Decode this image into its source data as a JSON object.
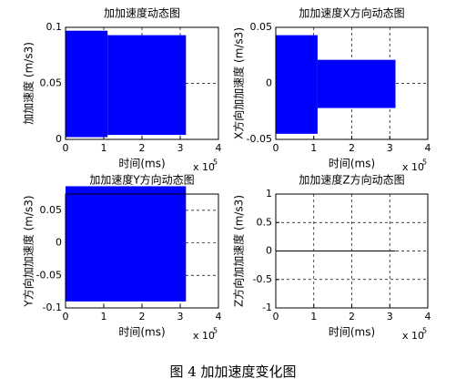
{
  "chart_data": [
    {
      "type": "area",
      "title": "加加速度动态图",
      "x_label": "时间(ms)",
      "y_label": "加加速度 (m/s3)",
      "x_multiplier": "x 10",
      "x_exponent": "5",
      "color": "#0000ff",
      "grid": true,
      "xlim": [
        0,
        400000
      ],
      "ylim": [
        0,
        0.1
      ],
      "xticks": [
        {
          "value": 0,
          "label": "0"
        },
        {
          "value": 100000,
          "label": "1"
        },
        {
          "value": 200000,
          "label": "2"
        },
        {
          "value": 300000,
          "label": "3"
        },
        {
          "value": 400000,
          "label": "4"
        }
      ],
      "yticks": [
        0,
        0.05,
        0.1
      ],
      "segments": [
        {
          "x": [
            0,
            110000
          ],
          "upper": 0.097,
          "lower": 0.002
        },
        {
          "x": [
            110000,
            315000
          ],
          "upper": 0.093,
          "lower": 0.004
        }
      ]
    },
    {
      "type": "area",
      "title": "加加速度X方向动态图",
      "x_label": "时间(ms)",
      "y_label": "X方向加加速度 (m/s3)",
      "x_multiplier": "x 10",
      "x_exponent": "5",
      "color": "#0000ff",
      "grid": true,
      "xlim": [
        0,
        400000
      ],
      "ylim": [
        -0.05,
        0.05
      ],
      "xticks": [
        {
          "value": 0,
          "label": "0"
        },
        {
          "value": 100000,
          "label": "1"
        },
        {
          "value": 200000,
          "label": "2"
        },
        {
          "value": 300000,
          "label": "3"
        },
        {
          "value": 400000,
          "label": "4"
        }
      ],
      "yticks": [
        -0.05,
        0,
        0.05
      ],
      "segments": [
        {
          "x": [
            0,
            110000
          ],
          "upper": 0.043,
          "lower": -0.045
        },
        {
          "x": [
            110000,
            315000
          ],
          "upper": 0.021,
          "lower": -0.022
        }
      ]
    },
    {
      "type": "area",
      "title": "加加速度Y方向动态图",
      "x_label": "时间(ms)",
      "y_label": "Y方向加加速度 (m/s3)",
      "x_multiplier": "x 10",
      "x_exponent": "5",
      "color": "#0000ff",
      "grid": true,
      "xlim": [
        0,
        400000
      ],
      "ylim": [
        -0.1,
        0.075
      ],
      "xticks": [
        {
          "value": 0,
          "label": "0"
        },
        {
          "value": 100000,
          "label": "1"
        },
        {
          "value": 200000,
          "label": "2"
        },
        {
          "value": 300000,
          "label": "3"
        },
        {
          "value": 400000,
          "label": "4"
        }
      ],
      "yticks": [
        -0.1,
        -0.05,
        0,
        0.05
      ],
      "segments": [
        {
          "x": [
            0,
            315000
          ],
          "upper": 0.087,
          "lower": -0.09
        }
      ]
    },
    {
      "type": "line",
      "title": "加加速度Z方向动态图",
      "x_label": "时间(ms)",
      "y_label": "Z方向加加速度 (m/s3)",
      "x_multiplier": "x 10",
      "x_exponent": "5",
      "color": "#000000",
      "grid": true,
      "xlim": [
        0,
        400000
      ],
      "ylim": [
        -1,
        1
      ],
      "xticks": [
        {
          "value": 0,
          "label": "0"
        },
        {
          "value": 100000,
          "label": "1"
        },
        {
          "value": 200000,
          "label": "2"
        },
        {
          "value": 300000,
          "label": "3"
        },
        {
          "value": 400000,
          "label": "4"
        }
      ],
      "yticks": [
        -1,
        -0.5,
        0,
        0.5,
        1
      ],
      "x": [
        0,
        315000
      ],
      "values": [
        0,
        0
      ]
    }
  ],
  "caption": "图 4 加加速度变化图"
}
